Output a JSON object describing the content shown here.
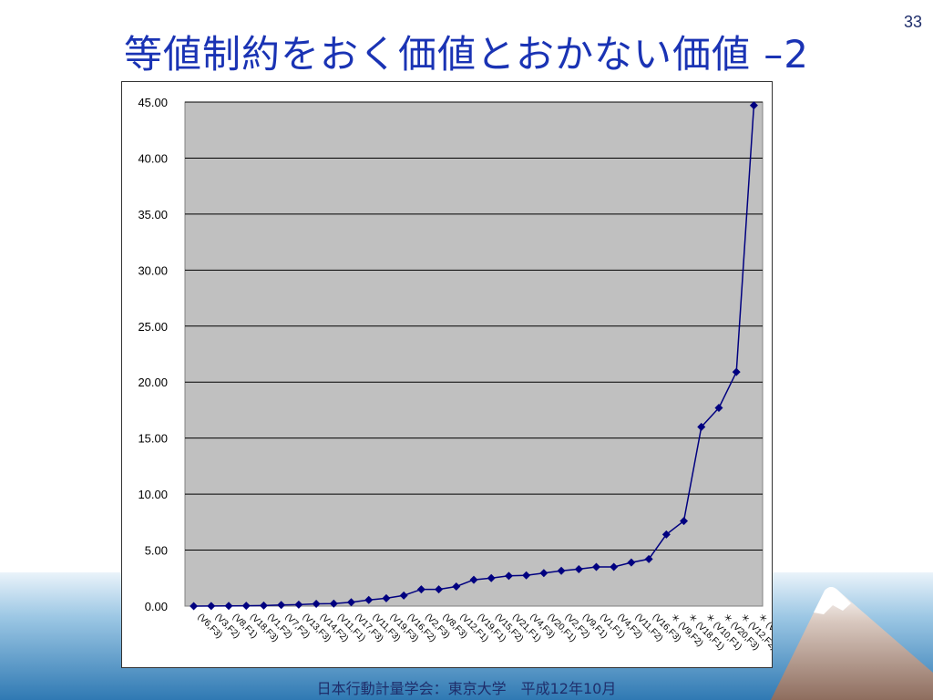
{
  "slide": {
    "number": "33",
    "title": "等値制約をおく価値とおかない価値 –2",
    "footer": "日本行動計量学会：東京大学　平成12年10月"
  },
  "colors": {
    "title": "#1a33b4",
    "series": "#000080",
    "plot_bg": "#c0c0c0",
    "sea": "#4a8fc0"
  },
  "chart_data": {
    "type": "line",
    "title": "",
    "xlabel": "",
    "ylabel": "",
    "ylim": [
      0,
      45
    ],
    "y_ticks": [
      "0.00",
      "5.00",
      "10.00",
      "15.00",
      "20.00",
      "25.00",
      "30.00",
      "35.00",
      "40.00",
      "45.00"
    ],
    "grid": true,
    "legend": "none",
    "categories": [
      "(V6,F3)",
      "(V3,F2)",
      "(V8,F1)",
      "(V18,F3)",
      "(V1,F2)",
      "(V7,F2)",
      "(V13,F3)",
      "(V14,F2)",
      "(V11,F1)",
      "(V17,F3)",
      "(V11,F3)",
      "(V19,F3)",
      "(V16,F2)",
      "(V2,F3)",
      "(V8,F3)",
      "(V12,F1)",
      "(V19,F1)",
      "(V15,F2)",
      "(V21,F1)",
      "(V4,F3)",
      "(V20,F1)",
      "(V2,F2)",
      "(V9,F1)",
      "(V1,F1)",
      "(V4,F2)",
      "(V11,F2)",
      "(V16,F3)",
      "＊ (V9,F2)",
      "＊ (V18,F1)",
      "＊ (V10,F1)",
      "＊ (V20,F3)",
      "＊ (V12,F2)",
      "＊ (V5,F2)"
    ],
    "series": [
      {
        "values": [
          0.0,
          0.01,
          0.02,
          0.03,
          0.05,
          0.1,
          0.13,
          0.2,
          0.22,
          0.35,
          0.55,
          0.7,
          0.95,
          1.5,
          1.5,
          1.75,
          2.35,
          2.5,
          2.7,
          2.75,
          2.95,
          3.15,
          3.3,
          3.5,
          3.5,
          3.9,
          4.2,
          6.4,
          7.6,
          16.0,
          17.7,
          20.9,
          44.7
        ]
      }
    ]
  }
}
